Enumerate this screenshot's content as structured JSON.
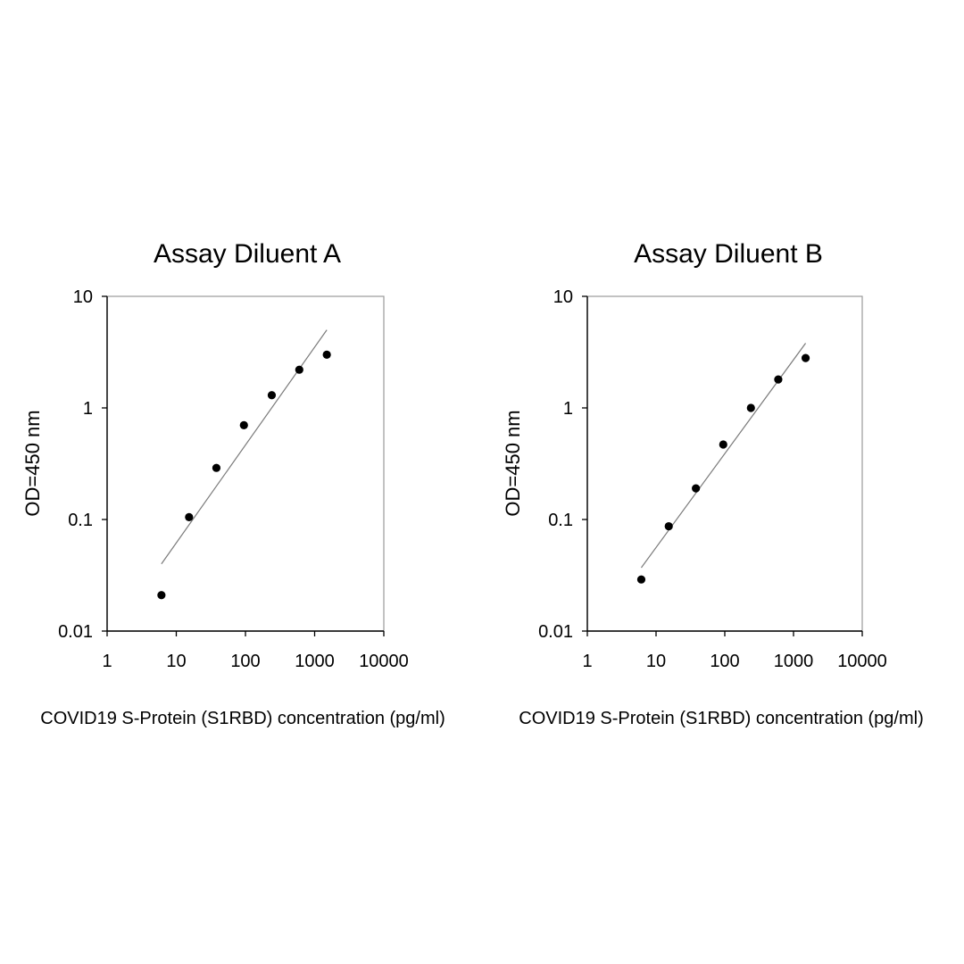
{
  "chart_data": [
    {
      "type": "scatter",
      "title": "Assay Diluent A",
      "xlabel": "COVID19 S-Protein (S1RBD) concentration (pg/ml)",
      "ylabel": "OD=450 nm",
      "x_scale": "log",
      "y_scale": "log",
      "xlim": [
        1,
        10000
      ],
      "ylim": [
        0.01,
        10
      ],
      "x_ticks": [
        "1",
        "10",
        "100",
        "1000",
        "10000"
      ],
      "y_ticks": [
        "0.01",
        "0.1",
        "1",
        "10"
      ],
      "grid": false,
      "points": [
        {
          "x": 6.1,
          "y": 0.021
        },
        {
          "x": 15.3,
          "y": 0.105
        },
        {
          "x": 38,
          "y": 0.29
        },
        {
          "x": 95,
          "y": 0.7
        },
        {
          "x": 240,
          "y": 1.3
        },
        {
          "x": 600,
          "y": 2.2
        },
        {
          "x": 1500,
          "y": 3.0
        }
      ],
      "fit_line": [
        {
          "x": 6.1,
          "y": 0.04
        },
        {
          "x": 1500,
          "y": 5.0
        }
      ]
    },
    {
      "type": "scatter",
      "title": "Assay Diluent B",
      "xlabel": "COVID19 S-Protein (S1RBD) concentration (pg/ml)",
      "ylabel": "OD=450 nm",
      "x_scale": "log",
      "y_scale": "log",
      "xlim": [
        1,
        10000
      ],
      "ylim": [
        0.01,
        10
      ],
      "x_ticks": [
        "1",
        "10",
        "100",
        "1000",
        "10000"
      ],
      "y_ticks": [
        "0.01",
        "0.1",
        "1",
        "10"
      ],
      "grid": false,
      "points": [
        {
          "x": 6.1,
          "y": 0.029
        },
        {
          "x": 15.3,
          "y": 0.087
        },
        {
          "x": 38,
          "y": 0.19
        },
        {
          "x": 95,
          "y": 0.47
        },
        {
          "x": 240,
          "y": 1.0
        },
        {
          "x": 600,
          "y": 1.8
        },
        {
          "x": 1500,
          "y": 2.8
        }
      ],
      "fit_line": [
        {
          "x": 6.1,
          "y": 0.037
        },
        {
          "x": 1500,
          "y": 3.8
        }
      ]
    }
  ]
}
